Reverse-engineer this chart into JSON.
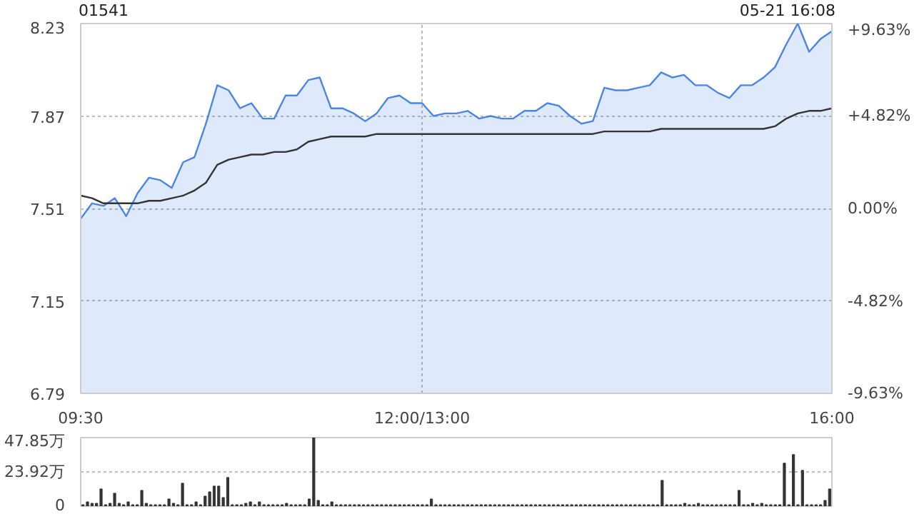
{
  "chart_data": [
    {
      "type": "area",
      "title": "01541",
      "annotations": [
        "05-21 16:08"
      ],
      "categories": [
        "09:30",
        null,
        null,
        null,
        null,
        null,
        null,
        null,
        null,
        null,
        null,
        null,
        null,
        null,
        null,
        null,
        null,
        null,
        null,
        null,
        null,
        null,
        null,
        null,
        null,
        null,
        null,
        null,
        null,
        null,
        "12:00/13:00",
        null,
        null,
        null,
        null,
        null,
        null,
        null,
        null,
        null,
        null,
        null,
        null,
        null,
        null,
        null,
        null,
        null,
        null,
        null,
        null,
        null,
        null,
        null,
        null,
        null,
        null,
        null,
        null,
        null,
        null,
        null,
        null,
        null,
        null,
        null,
        "16:00"
      ],
      "series": [
        {
          "type": "area",
          "color": "#4a86e8",
          "values": [
            7.47,
            7.53,
            7.52,
            7.55,
            7.48,
            7.57,
            7.63,
            7.62,
            7.59,
            7.69,
            7.71,
            7.84,
            7.99,
            7.97,
            7.9,
            7.92,
            7.86,
            7.86,
            7.95,
            7.95,
            8.01,
            8.02,
            7.9,
            7.9,
            7.88,
            7.85,
            7.88,
            7.94,
            7.95,
            7.92,
            7.92,
            7.87,
            7.88,
            7.88,
            7.89,
            7.86,
            7.87,
            7.86,
            7.86,
            7.89,
            7.89,
            7.92,
            7.91,
            7.87,
            7.84,
            7.85,
            7.98,
            7.97,
            7.97,
            7.98,
            7.99,
            8.04,
            8.02,
            8.03,
            7.99,
            7.99,
            7.96,
            7.94,
            7.99,
            7.99,
            8.02,
            8.06,
            8.15,
            8.23,
            8.12,
            8.17,
            8.2
          ]
        },
        {
          "type": "line",
          "color": "#333333",
          "values": [
            7.56,
            7.55,
            7.53,
            7.53,
            7.53,
            7.53,
            7.54,
            7.54,
            7.55,
            7.56,
            7.58,
            7.61,
            7.68,
            7.7,
            7.71,
            7.72,
            7.72,
            7.73,
            7.73,
            7.74,
            7.77,
            7.78,
            7.79,
            7.79,
            7.79,
            7.79,
            7.8,
            7.8,
            7.8,
            7.8,
            7.8,
            7.8,
            7.8,
            7.8,
            7.8,
            7.8,
            7.8,
            7.8,
            7.8,
            7.8,
            7.8,
            7.8,
            7.8,
            7.8,
            7.8,
            7.8,
            7.81,
            7.81,
            7.81,
            7.81,
            7.81,
            7.82,
            7.82,
            7.82,
            7.82,
            7.82,
            7.82,
            7.82,
            7.82,
            7.82,
            7.82,
            7.83,
            7.86,
            7.88,
            7.89,
            7.89,
            7.9
          ]
        }
      ],
      "ylim": [
        6.79,
        8.23
      ],
      "yticks": [
        6.79,
        7.15,
        7.51,
        7.87,
        8.23
      ],
      "y2lim": [
        -9.63,
        9.63
      ],
      "y2ticks": [
        {
          "value": -9.63,
          "label": "-9.63%"
        },
        {
          "value": -4.82,
          "label": "-4.82%"
        },
        {
          "value": 0,
          "label": "0.00%"
        },
        {
          "value": 4.82,
          "label": "+4.82%"
        },
        {
          "value": 9.63,
          "label": "+9.63%"
        }
      ],
      "grid": true
    },
    {
      "type": "bar",
      "color": "#333333",
      "categories": [
        null,
        null,
        null,
        null,
        null,
        null,
        null,
        null,
        null,
        null,
        null,
        null,
        null,
        null,
        null,
        null,
        null,
        null,
        null,
        null,
        null,
        null,
        null,
        null,
        null,
        null,
        null,
        null,
        null,
        null,
        null,
        null,
        null,
        null,
        null,
        null,
        null,
        null,
        null,
        null,
        null,
        null,
        null,
        null,
        null,
        null,
        null,
        null,
        null,
        null,
        null,
        null,
        null,
        null,
        null,
        null,
        null,
        null,
        null,
        null,
        null,
        null,
        null,
        null,
        null,
        null,
        null,
        null,
        null,
        null,
        null,
        null,
        null,
        null,
        null,
        null,
        null,
        null,
        null,
        null,
        null,
        null,
        null,
        null,
        null,
        null,
        null,
        null,
        null,
        null,
        null,
        null,
        null,
        null,
        null,
        null,
        null,
        null,
        null,
        null,
        null,
        null,
        null,
        null,
        null,
        null,
        null,
        null,
        null,
        null,
        null,
        null,
        null,
        null,
        null,
        null,
        null,
        null,
        null,
        null,
        null,
        null,
        null,
        null,
        null,
        null,
        null,
        null,
        null,
        null,
        null,
        null,
        null,
        null,
        null,
        null,
        null,
        null,
        null,
        null,
        null,
        null,
        null,
        null,
        null,
        null,
        null,
        null,
        null,
        null,
        null,
        null,
        null,
        null,
        null,
        null,
        null,
        null,
        null,
        null,
        null,
        null,
        null,
        null,
        null,
        null
      ],
      "values": [
        1,
        3,
        2,
        2,
        12,
        1,
        2,
        9,
        2,
        1,
        3,
        1,
        1,
        11,
        2,
        1,
        1,
        1,
        1,
        5,
        2,
        1,
        16,
        1,
        1,
        3,
        1,
        7,
        10,
        14,
        14,
        6,
        20,
        1,
        1,
        1,
        2,
        3,
        1,
        3,
        1,
        1,
        1,
        1,
        1,
        2,
        1,
        1,
        1,
        1,
        5,
        47.85,
        4,
        1,
        1,
        3,
        1,
        1,
        1,
        1,
        1,
        1,
        1,
        1,
        1,
        1,
        1,
        1,
        1,
        1,
        1,
        1,
        1,
        1,
        1,
        1,
        1,
        5,
        1,
        1,
        1,
        1,
        1,
        1,
        1,
        1,
        1,
        1,
        1,
        1,
        1,
        1,
        1,
        1,
        1,
        1,
        1,
        1,
        1,
        1,
        1,
        1,
        1,
        1,
        1,
        1,
        1,
        1,
        1,
        1,
        1,
        1,
        1,
        1,
        1,
        1,
        1,
        1,
        1,
        1,
        1,
        1,
        1,
        1,
        1,
        1,
        1,
        1,
        18,
        1,
        1,
        1,
        1,
        2,
        1,
        1,
        2,
        1,
        1,
        1,
        1,
        1,
        1,
        1,
        1,
        11,
        1,
        1,
        2,
        1,
        2,
        1,
        1,
        1,
        1,
        30,
        1,
        36,
        1,
        25,
        1,
        1,
        1,
        1,
        4,
        12
      ],
      "ylim": [
        0,
        47.85
      ],
      "yticks": [
        0,
        {
          "value": 23.92,
          "label": "23.92万"
        },
        {
          "value": 47.85,
          "label": "47.85万"
        }
      ],
      "grid": "y"
    }
  ]
}
